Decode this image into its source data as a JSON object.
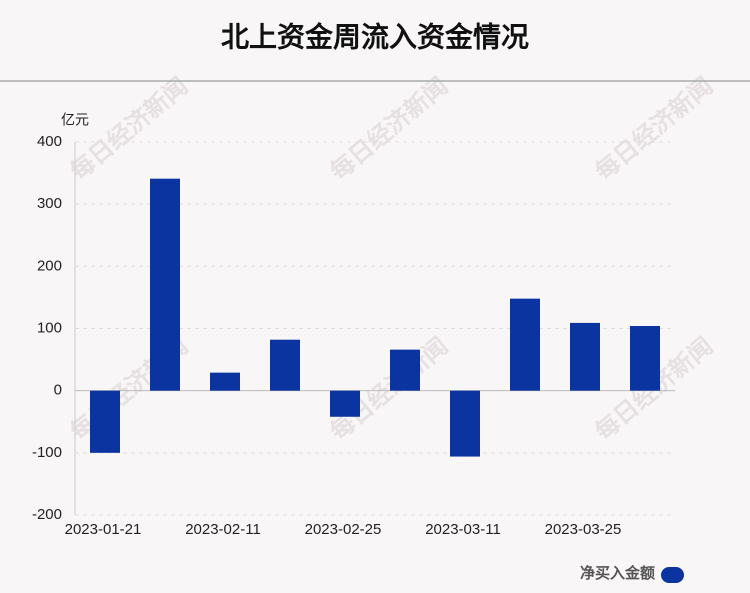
{
  "chart_data": {
    "type": "bar",
    "title": "北上资金周流入资金情况",
    "y_unit": "亿元",
    "categories": [
      "2023-01-21",
      null,
      "2023-02-11",
      null,
      "2023-02-25",
      null,
      "2023-03-11",
      null,
      "2023-03-25",
      null
    ],
    "series": [
      {
        "name": "净买入金额",
        "color": "#0c34a0",
        "values": [
          -100,
          341,
          29,
          82,
          -42,
          66,
          -106,
          148,
          109,
          104
        ]
      }
    ],
    "ylim": [
      -200,
      400
    ],
    "yticks": [
      -200,
      -100,
      0,
      100,
      200,
      300,
      400
    ],
    "grid": true,
    "legend": "bottom-right",
    "watermark": "每日经济新闻"
  }
}
